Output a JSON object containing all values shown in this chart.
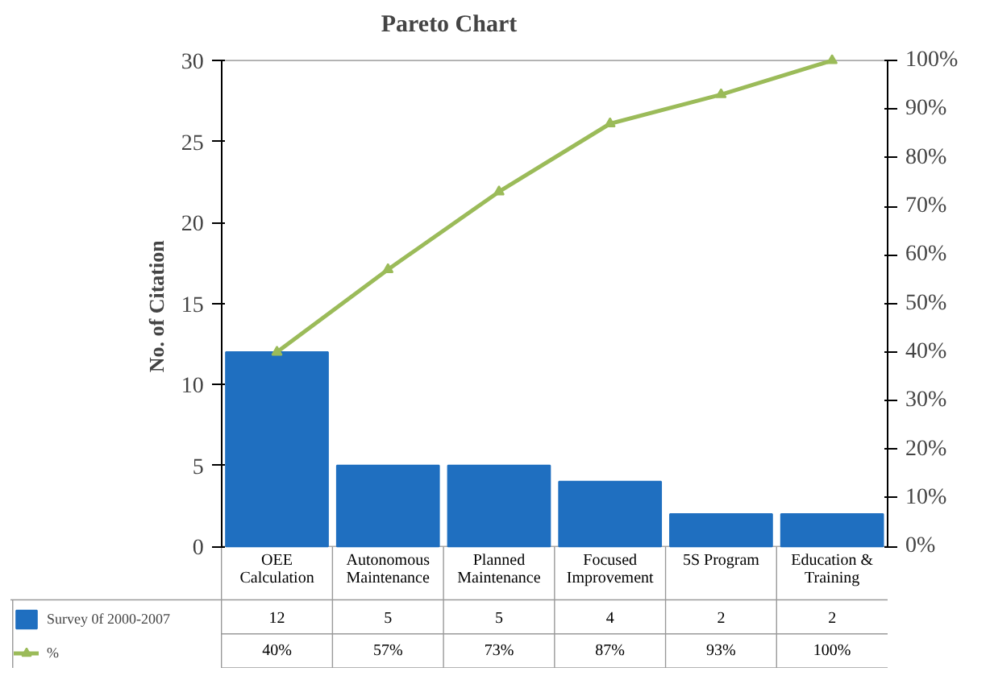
{
  "chart_data": {
    "type": "bar",
    "title": "Pareto Chart",
    "ylabel": "No. of  Citation",
    "categories": [
      "OEE Calculation",
      "Autonomous Maintenance",
      "Planned Maintenance",
      "Focused Improvement",
      "5S Program",
      "Education & Training"
    ],
    "series": [
      {
        "name": "Survey 0f 2000-2007",
        "color": "#1f6fc0",
        "values": [
          12,
          5,
          5,
          4,
          2,
          2
        ],
        "value_labels": [
          "12",
          "5",
          "5",
          "4",
          "2",
          "2"
        ]
      },
      {
        "name": "%",
        "type": "line",
        "axis": "y2",
        "color": "#9bbb59",
        "marker": "triangle",
        "values": [
          40,
          57,
          73,
          87,
          93,
          100
        ],
        "value_labels": [
          "40%",
          "57%",
          "73%",
          "87%",
          "93%",
          "100%"
        ]
      }
    ],
    "ylim": [
      0,
      30
    ],
    "yticks": [
      0,
      5,
      10,
      15,
      20,
      25,
      30
    ],
    "y2lim": [
      0,
      100
    ],
    "y2ticks": [
      {
        "value": 0,
        "label": "0%"
      },
      {
        "value": 10,
        "label": "10%"
      },
      {
        "value": 20,
        "label": "20%"
      },
      {
        "value": 30,
        "label": "30%"
      },
      {
        "value": 40,
        "label": "40%"
      },
      {
        "value": 50,
        "label": "50%"
      },
      {
        "value": 60,
        "label": "60%"
      },
      {
        "value": 70,
        "label": "70%"
      },
      {
        "value": 80,
        "label": "80%"
      },
      {
        "value": 90,
        "label": "90%"
      },
      {
        "value": 100,
        "label": "100%"
      }
    ],
    "grid": false,
    "legend": "bottom left"
  }
}
